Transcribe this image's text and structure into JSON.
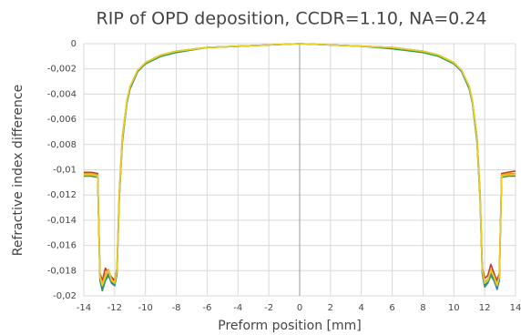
{
  "chart_data": {
    "type": "line",
    "title": "RIP of OPD deposition, CCDR=1.10, NA=0.24",
    "x_label": "Preform position [mm]",
    "y_label": "Refractive index difference",
    "x": [
      -14,
      -13.5,
      -13.1,
      -12.95,
      -12.8,
      -12.6,
      -12.4,
      -12.2,
      -12.0,
      -11.85,
      -11.7,
      -11.5,
      -11.2,
      -11,
      -10.5,
      -10,
      -9,
      -8,
      -6,
      -4,
      -2,
      0,
      2,
      4,
      6,
      8,
      9,
      10,
      10.5,
      11,
      11.2,
      11.5,
      11.7,
      11.85,
      12.0,
      12.2,
      12.4,
      12.6,
      12.8,
      12.95,
      13.1,
      13.5,
      14
    ],
    "series": [
      {
        "color": "#c0392b",
        "values": [
          -0.0102,
          -0.0102,
          -0.0103,
          -0.0182,
          -0.0188,
          -0.0178,
          -0.0182,
          -0.0185,
          -0.0188,
          -0.0178,
          -0.0118,
          -0.0074,
          -0.0045,
          -0.0034,
          -0.0021,
          -0.0015,
          -0.0009,
          -0.0006,
          -0.0003,
          -0.0002,
          -0.0001,
          0,
          -0.0001,
          -0.0002,
          -0.0003,
          -0.0006,
          -0.0009,
          -0.0015,
          -0.0021,
          -0.0034,
          -0.0045,
          -0.0074,
          -0.0118,
          -0.0178,
          -0.0186,
          -0.0184,
          -0.0175,
          -0.0182,
          -0.0188,
          -0.0182,
          -0.0103,
          -0.0102,
          -0.0101
        ]
      },
      {
        "color": "#2e9e4f",
        "values": [
          -0.0105,
          -0.0105,
          -0.0106,
          -0.0188,
          -0.0196,
          -0.0188,
          -0.0184,
          -0.019,
          -0.0192,
          -0.0183,
          -0.0123,
          -0.0078,
          -0.0047,
          -0.0036,
          -0.0022,
          -0.0016,
          -0.001,
          -0.0007,
          -0.0003,
          -0.0002,
          -0.0001,
          0,
          -0.0001,
          -0.0002,
          -0.0004,
          -0.0007,
          -0.001,
          -0.0016,
          -0.0022,
          -0.0036,
          -0.0047,
          -0.0078,
          -0.0123,
          -0.0183,
          -0.0193,
          -0.019,
          -0.0184,
          -0.0188,
          -0.0194,
          -0.0188,
          -0.0106,
          -0.0105,
          -0.0105
        ]
      },
      {
        "color": "#2a7ab8",
        "values": [
          -0.0104,
          -0.0104,
          -0.0105,
          -0.0187,
          -0.0194,
          -0.0186,
          -0.0182,
          -0.0189,
          -0.0191,
          -0.0182,
          -0.0122,
          -0.0077,
          -0.0046,
          -0.0035,
          -0.0022,
          -0.0015,
          -0.0009,
          -0.0006,
          -0.0003,
          -0.0002,
          -0.0001,
          0,
          -0.0001,
          -0.0002,
          -0.0003,
          -0.0006,
          -0.0009,
          -0.0015,
          -0.0022,
          -0.0035,
          -0.0046,
          -0.0077,
          -0.0122,
          -0.0182,
          -0.0191,
          -0.0189,
          -0.0182,
          -0.0186,
          -0.0195,
          -0.0187,
          -0.0105,
          -0.0104,
          -0.0104
        ]
      },
      {
        "color": "#f0a020",
        "values": [
          -0.0103,
          -0.0103,
          -0.0104,
          -0.0184,
          -0.019,
          -0.0183,
          -0.0179,
          -0.0187,
          -0.0189,
          -0.0179,
          -0.0119,
          -0.0075,
          -0.0045,
          -0.0034,
          -0.0021,
          -0.0015,
          -0.0009,
          -0.0006,
          -0.0003,
          -0.0002,
          -0.0001,
          0,
          -0.0001,
          -0.0002,
          -0.0003,
          -0.0006,
          -0.0009,
          -0.0015,
          -0.0021,
          -0.0034,
          -0.0045,
          -0.0075,
          -0.0119,
          -0.0179,
          -0.0189,
          -0.0187,
          -0.0179,
          -0.0184,
          -0.0191,
          -0.0184,
          -0.0104,
          -0.0103,
          -0.0103
        ]
      },
      {
        "color": "#e8d020",
        "values": [
          -0.0104,
          -0.0104,
          -0.0105,
          -0.0185,
          -0.0192,
          -0.0185,
          -0.018,
          -0.0188,
          -0.019,
          -0.018,
          -0.012,
          -0.0075,
          -0.0045,
          -0.0034,
          -0.0021,
          -0.0015,
          -0.0009,
          -0.0006,
          -0.0003,
          -0.0002,
          -0.0001,
          0,
          -0.0001,
          -0.0002,
          -0.0003,
          -0.0006,
          -0.0009,
          -0.0015,
          -0.0021,
          -0.0034,
          -0.0045,
          -0.0075,
          -0.012,
          -0.018,
          -0.019,
          -0.0188,
          -0.018,
          -0.0185,
          -0.0192,
          -0.0185,
          -0.0105,
          -0.0104,
          -0.0104
        ]
      }
    ],
    "xlim": [
      -14,
      14
    ],
    "xticks": [
      -14,
      -12,
      -10,
      -8,
      -6,
      -4,
      -2,
      0,
      2,
      4,
      6,
      8,
      10,
      12,
      14
    ],
    "ylim": [
      -0.02,
      0
    ],
    "yticks": [
      0,
      {
        "value": -0.002,
        "label": "-0,002"
      },
      {
        "value": -0.004,
        "label": "-0,004"
      },
      {
        "value": -0.006,
        "label": "-0,006"
      },
      {
        "value": -0.008,
        "label": "-0,008"
      },
      {
        "value": -0.01,
        "label": "-0,01"
      },
      {
        "value": -0.012,
        "label": "-0,012"
      },
      {
        "value": -0.014,
        "label": "-0,014"
      },
      {
        "value": -0.016,
        "label": "-0,016"
      },
      {
        "value": -0.018,
        "label": "-0,018"
      },
      {
        "value": -0.02,
        "label": "-0,02"
      }
    ],
    "grid": true
  }
}
